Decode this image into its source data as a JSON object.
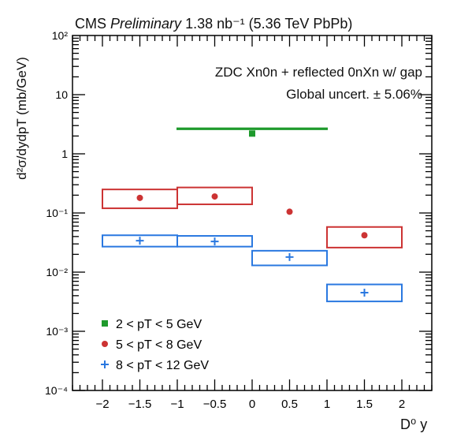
{
  "header": {
    "experiment": "CMS",
    "status": "Preliminary",
    "lumi_text": "1.38 nb⁻¹ (5.36 TeV PbPb)"
  },
  "annotations": {
    "line1": "ZDC Xn0n + reflected 0nXn w/ gap",
    "line2": "Global uncert. ± 5.06%"
  },
  "chart_data": {
    "type": "scatter",
    "title": "",
    "xlabel": "D⁰ y",
    "ylabel": "d²σ/dydpT (mb/GeV)",
    "xlim": [
      -2.4,
      2.4
    ],
    "ylim": [
      0.0001,
      100
    ],
    "yscale": "log",
    "xticks": [
      -2,
      -1.5,
      -1,
      -0.5,
      0,
      0.5,
      1,
      1.5,
      2
    ],
    "xtick_labels": [
      "−2",
      "−1.5",
      "−1",
      "−0.5",
      "0",
      "0.5",
      "1",
      "1.5",
      "2"
    ],
    "yticks": [
      0.0001,
      0.001,
      0.01,
      0.1,
      1,
      10,
      100
    ],
    "ytick_labels": [
      "10⁻⁴",
      "10⁻³",
      "10⁻²",
      "10⁻¹",
      "1",
      "10",
      "10²"
    ],
    "legend_position": "bottom-left",
    "series": [
      {
        "name": "2 < pT < 5 GeV",
        "color": "#1e9a2c",
        "marker": "square",
        "points": [
          {
            "x": 0.0,
            "y": 2.2,
            "sys_x": [
              -1.0,
              1.0
            ],
            "sys_y": [
              2.6,
              2.7
            ]
          }
        ]
      },
      {
        "name": "5 < pT < 8 GeV",
        "color": "#cc3333",
        "marker": "circle",
        "points": [
          {
            "x": -1.5,
            "y": 0.18,
            "sys_x": [
              -2.0,
              -1.0
            ],
            "sys_y": [
              0.12,
              0.25
            ]
          },
          {
            "x": -0.5,
            "y": 0.19,
            "sys_x": [
              -1.0,
              0.0
            ],
            "sys_y": [
              0.14,
              0.27
            ]
          },
          {
            "x": 0.5,
            "y": 0.105
          },
          {
            "x": 1.5,
            "y": 0.042,
            "sys_x": [
              1.0,
              2.0
            ],
            "sys_y": [
              0.026,
              0.058
            ]
          }
        ]
      },
      {
        "name": "8 < pT < 12 GeV",
        "color": "#2a78e0",
        "marker": "plus",
        "points": [
          {
            "x": -1.5,
            "y": 0.034,
            "sys_x": [
              -2.0,
              -1.0
            ],
            "sys_y": [
              0.027,
              0.042
            ]
          },
          {
            "x": -0.5,
            "y": 0.033,
            "sys_x": [
              -1.0,
              0.0
            ],
            "sys_y": [
              0.027,
              0.041
            ]
          },
          {
            "x": 0.5,
            "y": 0.018,
            "sys_x": [
              0.0,
              1.0
            ],
            "sys_y": [
              0.013,
              0.023
            ]
          },
          {
            "x": 1.5,
            "y": 0.0045,
            "sys_x": [
              1.0,
              2.0
            ],
            "sys_y": [
              0.0032,
              0.0062
            ]
          }
        ]
      }
    ]
  }
}
